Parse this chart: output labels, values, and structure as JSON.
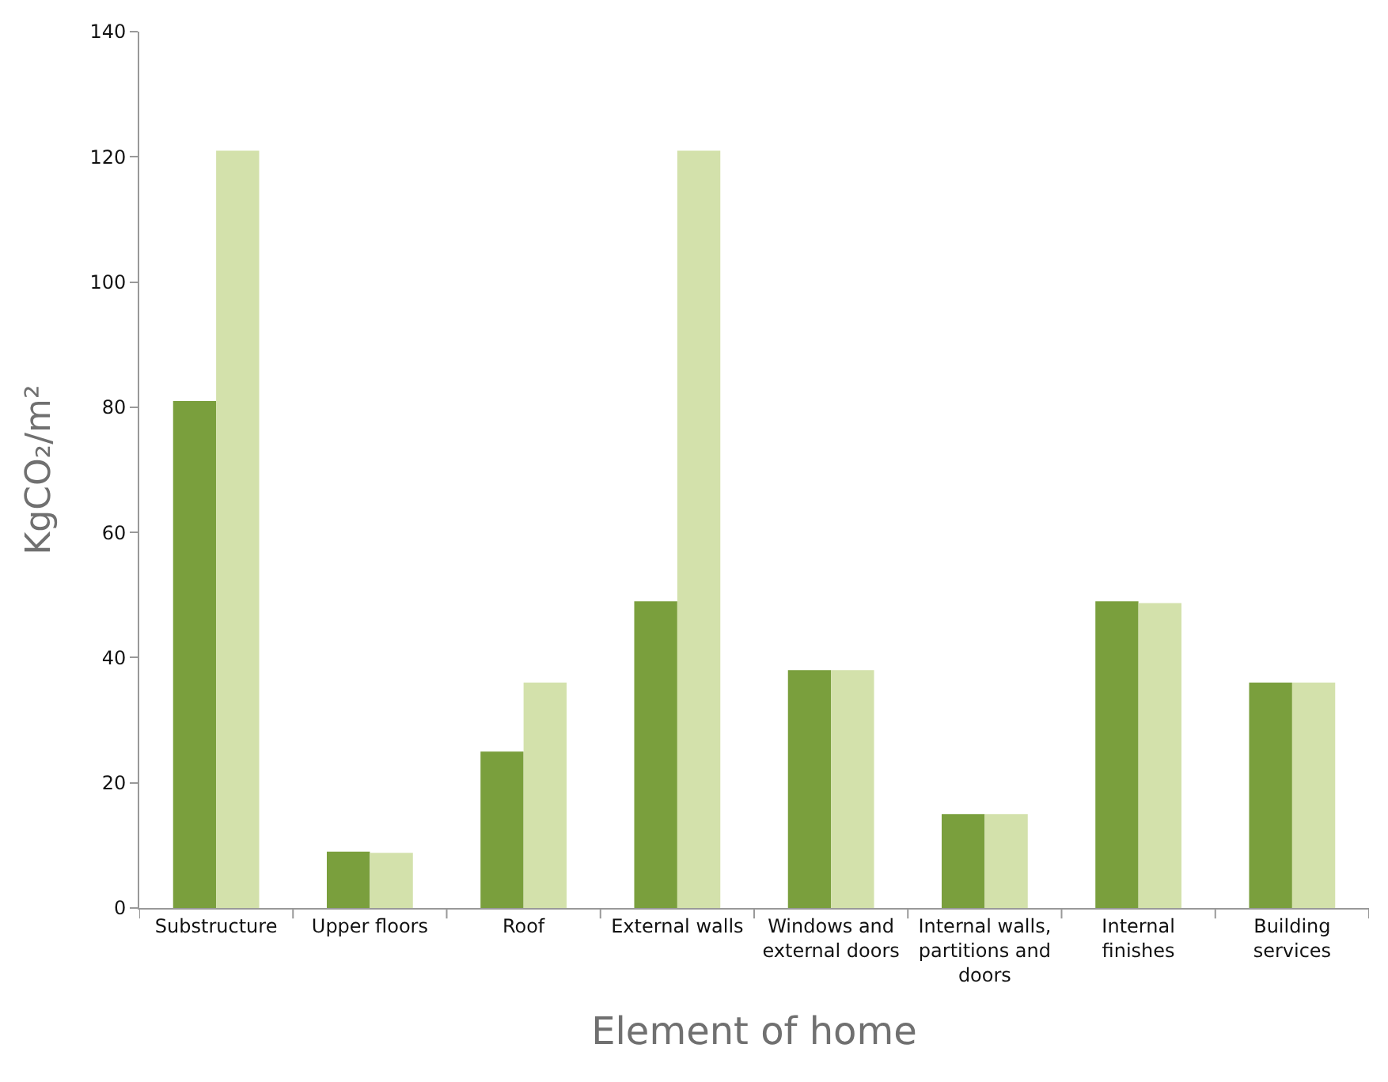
{
  "chart_data": {
    "type": "bar",
    "xlabel": "Element of home",
    "ylabel": "KgCO₂/m²",
    "categories": [
      "Substructure",
      "Upper floors",
      "Roof",
      "External walls",
      "Windows and external doors",
      "Internal walls, partitions and doors",
      "Internal finishes",
      "Building services"
    ],
    "series": [
      {
        "color": "#7a9f3d",
        "values": [
          81,
          9,
          25,
          49,
          38,
          15,
          49,
          36
        ]
      },
      {
        "color": "#d3e1ab",
        "values": [
          121,
          8.8,
          36,
          121,
          38,
          15,
          48.7,
          36
        ]
      }
    ],
    "ylim": [
      0,
      140
    ],
    "yticks": [
      0,
      20,
      40,
      60,
      80,
      100,
      120,
      140
    ]
  }
}
